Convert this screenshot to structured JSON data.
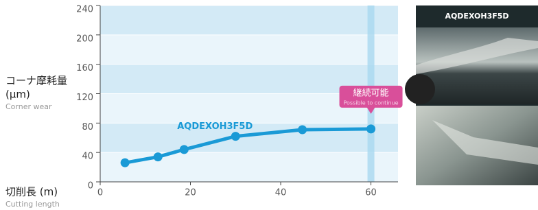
{
  "chart_data": {
    "type": "line",
    "y_label": "コーナ摩耗量",
    "y_unit": "(μm)",
    "y_label_en": "Corner wear",
    "x_label": "切削長 (m)",
    "x_label_en": "Cutting length",
    "x": [
      5.5,
      12.8,
      18.6,
      30,
      44.8,
      60
    ],
    "series": [
      {
        "name": "AQDEXOH3F5D",
        "color": "#1a9ad6",
        "values": [
          26,
          34,
          44,
          62,
          71,
          72
        ]
      }
    ],
    "xlim": [
      0,
      66
    ],
    "xticks": [
      0,
      20,
      40,
      60
    ],
    "ylim": [
      0,
      240
    ],
    "yticks": [
      0,
      40,
      80,
      120,
      160,
      200,
      240
    ],
    "highlight_x": 60,
    "callout": {
      "title": "継続可能",
      "subtitle": "Possible to continue"
    },
    "photo_title": "AQDEXOH3F5D"
  }
}
